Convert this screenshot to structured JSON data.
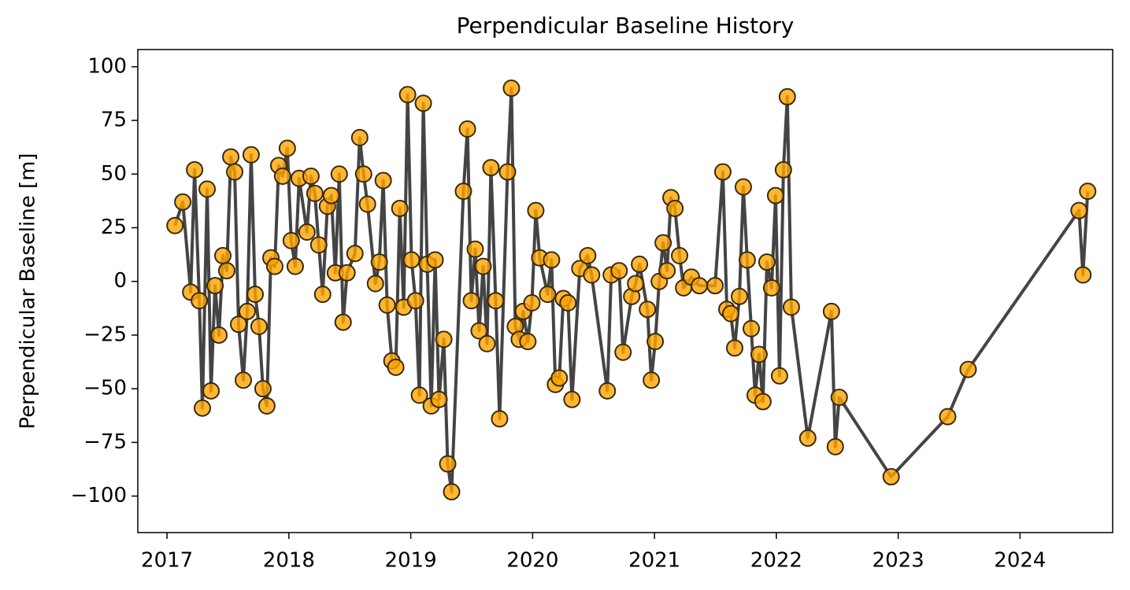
{
  "chart_data": {
    "type": "line",
    "title": "Perpendicular Baseline History",
    "y_label": "Perpendicular Baseline [m]",
    "x": [
      2017.065,
      2017.129,
      2017.194,
      2017.226,
      2017.265,
      2017.29,
      2017.329,
      2017.361,
      2017.394,
      2017.426,
      2017.458,
      2017.49,
      2017.523,
      2017.555,
      2017.587,
      2017.626,
      2017.658,
      2017.69,
      2017.723,
      2017.755,
      2017.787,
      2017.819,
      2017.852,
      2017.884,
      2017.916,
      2017.948,
      2017.987,
      2018.019,
      2018.052,
      2018.084,
      2018.148,
      2018.181,
      2018.213,
      2018.245,
      2018.277,
      2018.316,
      2018.348,
      2018.381,
      2018.413,
      2018.445,
      2018.477,
      2018.542,
      2018.581,
      2018.613,
      2018.645,
      2018.71,
      2018.742,
      2018.774,
      2018.806,
      2018.845,
      2018.877,
      2018.91,
      2018.942,
      2018.974,
      2019.006,
      2019.039,
      2019.071,
      2019.103,
      2019.135,
      2019.168,
      2019.2,
      2019.232,
      2019.271,
      2019.303,
      2019.335,
      2019.432,
      2019.465,
      2019.497,
      2019.529,
      2019.561,
      2019.594,
      2019.626,
      2019.658,
      2019.697,
      2019.729,
      2019.794,
      2019.826,
      2019.858,
      2019.89,
      2019.923,
      2019.961,
      2019.994,
      2020.026,
      2020.058,
      2020.123,
      2020.155,
      2020.187,
      2020.219,
      2020.252,
      2020.29,
      2020.323,
      2020.387,
      2020.452,
      2020.484,
      2020.613,
      2020.645,
      2020.71,
      2020.742,
      2020.813,
      2020.845,
      2020.877,
      2020.942,
      2020.974,
      2021.006,
      2021.039,
      2021.071,
      2021.103,
      2021.135,
      2021.168,
      2021.206,
      2021.239,
      2021.303,
      2021.368,
      2021.497,
      2021.561,
      2021.594,
      2021.626,
      2021.658,
      2021.697,
      2021.729,
      2021.761,
      2021.794,
      2021.826,
      2021.858,
      2021.89,
      2021.923,
      2021.961,
      2021.994,
      2022.026,
      2022.058,
      2022.09,
      2022.123,
      2022.258,
      2022.452,
      2022.484,
      2022.516,
      2022.942,
      2023.406,
      2023.574,
      2024.484,
      2024.516,
      2024.555
    ],
    "values": [
      26,
      37,
      -5,
      52,
      -9,
      -59,
      43,
      -51,
      -2,
      -25,
      12,
      5,
      58,
      51,
      -20,
      -46,
      -14,
      59,
      -6,
      -21,
      -50,
      -58,
      11,
      7,
      54,
      49,
      62,
      19,
      7,
      48,
      23,
      49,
      41,
      17,
      -6,
      35,
      40,
      4,
      50,
      -19,
      4,
      13,
      67,
      50,
      36,
      -1,
      9,
      47,
      -11,
      -37,
      -40,
      34,
      -12,
      87,
      10,
      -9,
      -53,
      83,
      8,
      -58,
      10,
      -55,
      -27,
      -85,
      -98,
      42,
      71,
      -9,
      15,
      -23,
      7,
      -29,
      53,
      -9,
      -64,
      51,
      90,
      -21,
      -27,
      -14,
      -28,
      -10,
      33,
      11,
      -6,
      10,
      -48,
      -45,
      -8,
      -10,
      -55,
      6,
      12,
      3,
      -51,
      3,
      5,
      -33,
      -7,
      -1,
      8,
      -13,
      -46,
      -28,
      0,
      18,
      5,
      39,
      34,
      12,
      -3,
      2,
      -2,
      -2,
      51,
      -13,
      -15,
      -31,
      -7,
      44,
      10,
      -22,
      -53,
      -34,
      -56,
      9,
      -3,
      40,
      -44,
      52,
      86,
      -12,
      -73,
      -14,
      -77,
      -54,
      -91,
      -63,
      -41,
      33,
      3,
      42
    ],
    "color": "#ffa500",
    "line_color": "#444444",
    "xlim": [
      2016.76,
      2024.76
    ],
    "xticks": [
      2017,
      2018,
      2019,
      2020,
      2021,
      2022,
      2023,
      2024
    ],
    "ylim": [
      -117,
      108
    ],
    "yticks": [
      {
        "value": -100,
        "label": "−100"
      },
      {
        "value": -75,
        "label": "−75"
      },
      {
        "value": -50,
        "label": "−50"
      },
      {
        "value": -25,
        "label": "−25"
      },
      0,
      25,
      50,
      75,
      100
    ]
  }
}
